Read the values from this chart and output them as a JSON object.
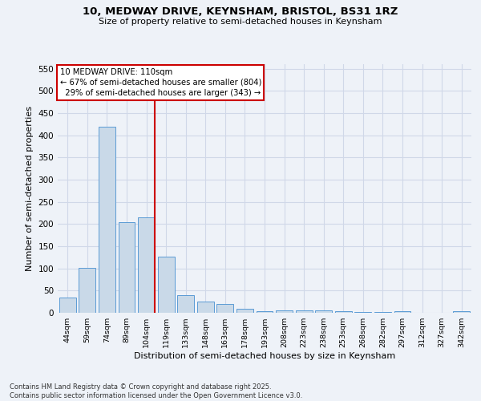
{
  "title_line1": "10, MEDWAY DRIVE, KEYNSHAM, BRISTOL, BS31 1RZ",
  "title_line2": "Size of property relative to semi-detached houses in Keynsham",
  "xlabel": "Distribution of semi-detached houses by size in Keynsham",
  "ylabel": "Number of semi-detached properties",
  "categories": [
    "44sqm",
    "59sqm",
    "74sqm",
    "89sqm",
    "104sqm",
    "119sqm",
    "133sqm",
    "148sqm",
    "163sqm",
    "178sqm",
    "193sqm",
    "208sqm",
    "223sqm",
    "238sqm",
    "253sqm",
    "268sqm",
    "282sqm",
    "297sqm",
    "312sqm",
    "327sqm",
    "342sqm"
  ],
  "values": [
    35,
    101,
    420,
    204,
    215,
    126,
    40,
    25,
    20,
    9,
    4,
    6,
    6,
    5,
    4,
    2,
    1,
    4,
    0,
    0,
    4
  ],
  "bar_color": "#c9d9e8",
  "bar_edge_color": "#5b9bd5",
  "grid_color": "#d0d8e8",
  "annotation_box_color": "#cc0000",
  "property_label": "10 MEDWAY DRIVE: 110sqm",
  "pct_smaller": 67,
  "count_smaller": 804,
  "pct_larger": 29,
  "count_larger": 343,
  "background_color": "#eef2f8",
  "footer_text": "Contains HM Land Registry data © Crown copyright and database right 2025.\nContains public sector information licensed under the Open Government Licence v3.0.",
  "ylim": [
    0,
    560
  ],
  "yticks": [
    0,
    50,
    100,
    150,
    200,
    250,
    300,
    350,
    400,
    450,
    500,
    550
  ]
}
